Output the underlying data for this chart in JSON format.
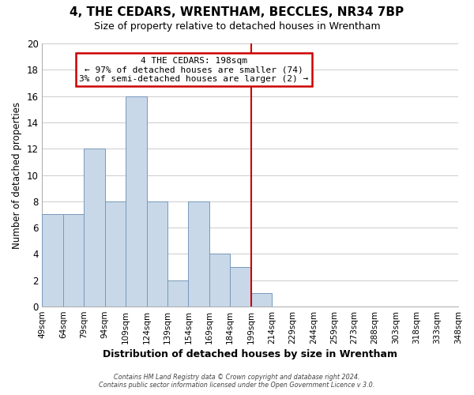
{
  "title": "4, THE CEDARS, WRENTHAM, BECCLES, NR34 7BP",
  "subtitle": "Size of property relative to detached houses in Wrentham",
  "xlabel": "Distribution of detached houses by size in Wrentham",
  "ylabel": "Number of detached properties",
  "bar_color": "#c8d8e8",
  "bar_edge_color": "#7799bb",
  "categories": [
    "49sqm",
    "64sqm",
    "79sqm",
    "94sqm",
    "109sqm",
    "124sqm",
    "139sqm",
    "154sqm",
    "169sqm",
    "184sqm",
    "199sqm",
    "214sqm",
    "229sqm",
    "244sqm",
    "259sqm",
    "273sqm",
    "288sqm",
    "303sqm",
    "318sqm",
    "333sqm",
    "348sqm"
  ],
  "bin_edges": [
    49,
    64,
    79,
    94,
    109,
    124,
    139,
    154,
    169,
    184,
    199,
    214,
    229,
    244,
    259,
    273,
    288,
    303,
    318,
    333,
    348
  ],
  "values": [
    7,
    7,
    12,
    8,
    16,
    8,
    2,
    8,
    4,
    3,
    1,
    0,
    0,
    0,
    0,
    0,
    0,
    0,
    0,
    0
  ],
  "ylim": [
    0,
    20
  ],
  "yticks": [
    0,
    2,
    4,
    6,
    8,
    10,
    12,
    14,
    16,
    18,
    20
  ],
  "property_line_x": 199,
  "property_line_color": "#cc0000",
  "annotation_title": "4 THE CEDARS: 198sqm",
  "annotation_line1": "← 97% of detached houses are smaller (74)",
  "annotation_line2": "3% of semi-detached houses are larger (2) →",
  "annotation_box_color": "#ffffff",
  "annotation_box_edge": "#cc0000",
  "footer_line1": "Contains HM Land Registry data © Crown copyright and database right 2024.",
  "footer_line2": "Contains public sector information licensed under the Open Government Licence v 3.0.",
  "background_color": "#ffffff",
  "grid_color": "#cccccc"
}
